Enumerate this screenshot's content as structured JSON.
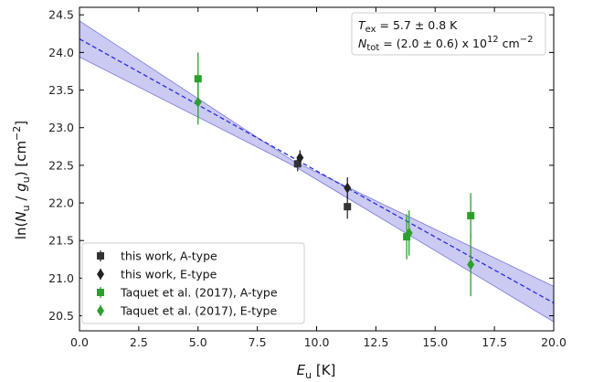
{
  "chart_data": {
    "type": "scatter",
    "xlabel": {
      "base": "E",
      "sub": "u",
      "unit": " [K]"
    },
    "ylabel": {
      "p1": "ln(",
      "n": "N",
      "nsub": "u",
      "sep": " / ",
      "g": "g",
      "gsub": "u",
      "p2": ") [cm",
      "sup": "−2",
      "p3": "]"
    },
    "xlim": [
      0.0,
      20.0
    ],
    "ylim": [
      20.3,
      24.6
    ],
    "xticks": [
      0.0,
      2.5,
      5.0,
      7.5,
      10.0,
      12.5,
      15.0,
      17.5,
      20.0
    ],
    "xtick_labels": [
      "0.0",
      "2.5",
      "5.0",
      "7.5",
      "10.0",
      "12.5",
      "15.0",
      "17.5",
      "20.0"
    ],
    "yticks": [
      20.5,
      21.0,
      21.5,
      22.0,
      22.5,
      23.0,
      23.5,
      24.0,
      24.5
    ],
    "ytick_labels": [
      "20.5",
      "21.0",
      "21.5",
      "22.0",
      "22.5",
      "23.0",
      "23.5",
      "24.0",
      "24.5"
    ],
    "grid": false,
    "fit": {
      "style": "dashed",
      "color": "#2a2ae0",
      "band_color": "#b8b8ee",
      "line": [
        [
          0.0,
          24.18
        ],
        [
          20.0,
          20.67
        ]
      ],
      "band_upper": [
        [
          0.0,
          24.42
        ],
        [
          9.0,
          22.56
        ],
        [
          20.0,
          20.89
        ]
      ],
      "band_lower": [
        [
          0.0,
          23.94
        ],
        [
          9.0,
          22.5
        ],
        [
          20.0,
          20.42
        ]
      ]
    },
    "series": [
      {
        "name": "this work, A-type",
        "marker": "square",
        "color": "#333333",
        "points": [
          {
            "x": 9.2,
            "y": 22.52,
            "err": 0.1
          },
          {
            "x": 11.3,
            "y": 21.95,
            "err": 0.16
          }
        ]
      },
      {
        "name": "this work, E-type",
        "marker": "diamond",
        "color": "#222222",
        "points": [
          {
            "x": 9.3,
            "y": 22.6,
            "err": 0.1
          },
          {
            "x": 11.3,
            "y": 22.2,
            "err": 0.14
          }
        ]
      },
      {
        "name": "Taquet et al. (2017), A-type",
        "marker": "square",
        "color": "#2ca02c",
        "points": [
          {
            "x": 5.0,
            "y": 23.65,
            "err": 0.35
          },
          {
            "x": 13.8,
            "y": 21.55,
            "err": 0.3
          },
          {
            "x": 16.5,
            "y": 21.83,
            "err": 0.3
          }
        ]
      },
      {
        "name": "Taquet et al. (2017), E-type",
        "marker": "diamond",
        "color": "#2ca02c",
        "points": [
          {
            "x": 5.0,
            "y": 23.34,
            "err": 0.3
          },
          {
            "x": 13.9,
            "y": 21.6,
            "err": 0.3
          },
          {
            "x": 16.5,
            "y": 21.18,
            "err": 0.42
          }
        ]
      }
    ],
    "legend_position": "bottom-left",
    "annotations": {
      "tex": {
        "base": "T",
        "sub": "ex",
        "rest": " = 5.7 ± 0.8 K"
      },
      "ntot": {
        "base": "N",
        "sub": "tot",
        "rest": " = (2.0 ± 0.6) x 10",
        "sup": "12",
        "unit": " cm",
        "unitsup": "−2"
      }
    }
  }
}
